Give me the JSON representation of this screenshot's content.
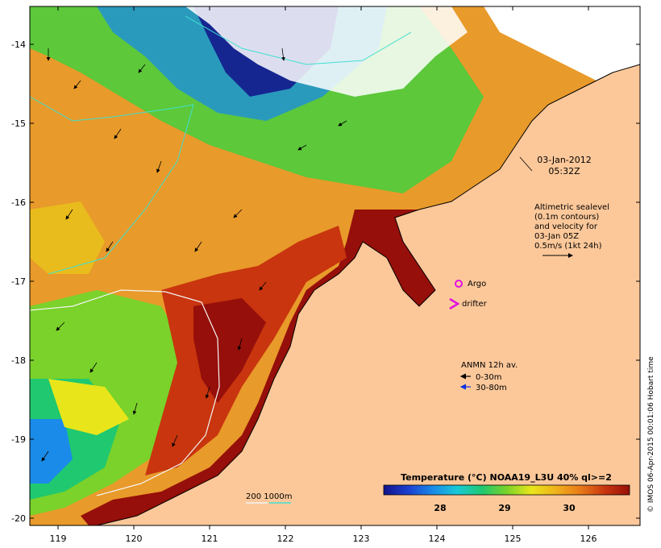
{
  "map": {
    "lon_ticks": [
      "119",
      "120",
      "121",
      "122",
      "123",
      "124",
      "125",
      "126"
    ],
    "lat_ticks": [
      "-14",
      "-15",
      "-16",
      "-17",
      "-18",
      "-19",
      "-20"
    ],
    "land_color": "#fcc89a",
    "sst_palette": [
      "#12128a",
      "#1c3fd0",
      "#1a8be8",
      "#18c9d6",
      "#20c870",
      "#7ad22a",
      "#e8e61a",
      "#f0b21a",
      "#e87a1a",
      "#c8350e",
      "#960f0a"
    ]
  },
  "annotations": {
    "date": "03-Jan-2012",
    "time": "05:32Z",
    "altimetry_lines": [
      "Altimetric sealevel",
      "(0.1m contours)",
      "and velocity for",
      "03-Jan 05Z",
      "0.5m/s (1kt 24h)"
    ],
    "argo_label": "Argo",
    "drifter_label": "drifter",
    "anmn_title": "ANMN 12h av.",
    "anmn_shallow": "0-30m",
    "anmn_deep": "30-80m",
    "isobath_label": "200  1000m"
  },
  "colorbar": {
    "title": "Temperature (°C) NOAA19_L3U 40% ql>=2",
    "ticks": [
      "28",
      "29",
      "30"
    ]
  },
  "credit": "© IMOS 06-Apr-2015 00:01:06 Hobart time"
}
